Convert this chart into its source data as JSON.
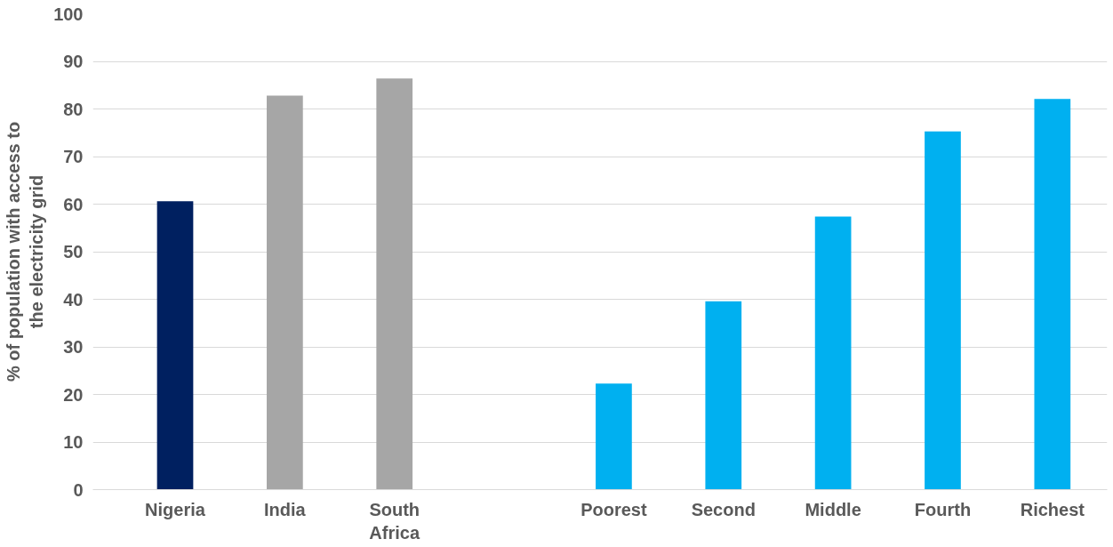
{
  "chart_data": {
    "type": "bar",
    "ylabel": "% of population with access to the electricity grid",
    "categories": [
      "Nigeria",
      "India",
      "South Africa",
      null,
      "Poorest",
      "Second",
      "Middle",
      "Fourth",
      "Richest"
    ],
    "values": [
      60.6,
      82.8,
      86.4,
      null,
      22.3,
      39.6,
      57.4,
      75.3,
      82.1
    ],
    "colors": [
      "#002060",
      "#a6a6a6",
      "#a6a6a6",
      "#ffffff",
      "#00b0f0",
      "#00b0f0",
      "#00b0f0",
      "#00b0f0",
      "#00b0f0"
    ],
    "ylim": [
      0,
      100
    ],
    "yticks": [
      0,
      10,
      20,
      30,
      40,
      50,
      60,
      70,
      80,
      90,
      100
    ],
    "grid": "y"
  }
}
